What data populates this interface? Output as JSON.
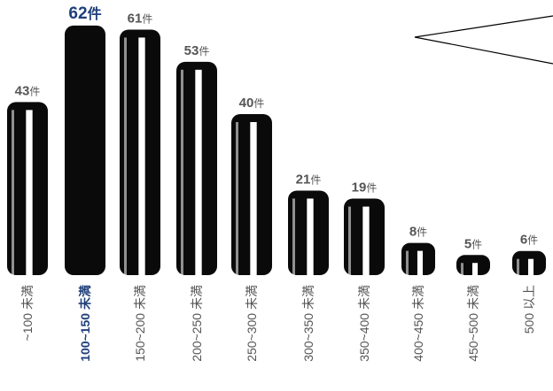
{
  "chart_data": {
    "type": "bar",
    "categories": [
      "~100 未満",
      "100~150 未満",
      "150~200 未満",
      "200~250 未満",
      "250~300 未満",
      "300~350 未満",
      "350~400 未満",
      "400~450 未満",
      "450~500 未満",
      "500 以上"
    ],
    "values": [
      43,
      62,
      61,
      53,
      40,
      21,
      19,
      8,
      5,
      6
    ],
    "value_labels": [
      "43",
      "62",
      "61",
      "53",
      "40",
      "21",
      "19",
      "8",
      "5",
      "6"
    ],
    "unit": "件",
    "highlight_index": 1,
    "colors": {
      "bar": "#0a0a0a",
      "highlight_label": "#1f3f7a",
      "axis_label": "#555555",
      "value_label": "#555555"
    },
    "title": "",
    "xlabel": "",
    "ylabel": ""
  }
}
